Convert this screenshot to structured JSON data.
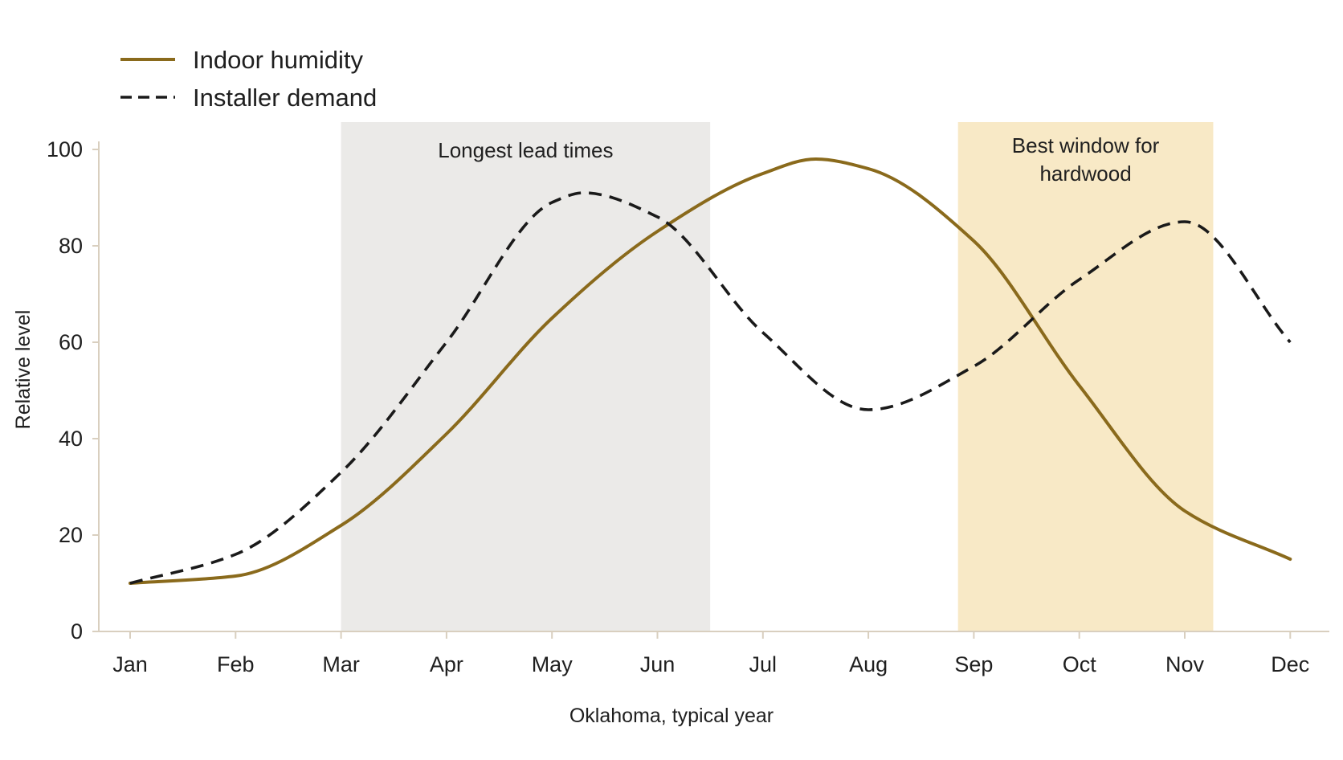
{
  "chart_data": {
    "type": "line",
    "title": "",
    "xlabel": "Oklahoma, typical year",
    "ylabel": "Relative level",
    "categories": [
      "Jan",
      "Feb",
      "Mar",
      "Apr",
      "May",
      "Jun",
      "Jul",
      "Aug",
      "Sep",
      "Oct",
      "Nov",
      "Dec"
    ],
    "ylim": [
      0,
      100
    ],
    "yticks": [
      0,
      20,
      40,
      60,
      80,
      100
    ],
    "grid": false,
    "legend_position": "top-left",
    "series": [
      {
        "name": "Indoor humidity",
        "style": "solid",
        "color": "#8a6a1c",
        "values": [
          10,
          11.5,
          22,
          41,
          65,
          83,
          95,
          96,
          81,
          51,
          25,
          15
        ],
        "peak": {
          "month": 7.5,
          "value": 98
        }
      },
      {
        "name": "Installer demand",
        "style": "dashed",
        "color": "#1a1a1a",
        "values": [
          10,
          16,
          33,
          60,
          89,
          86,
          62,
          46,
          55,
          73,
          85,
          60
        ],
        "peak": {
          "month": 5.3,
          "value": 91
        }
      }
    ],
    "bands": [
      {
        "label": "Longest lead times",
        "from": 3,
        "to": 6.5,
        "color": "#ebeae8"
      },
      {
        "label_lines": [
          "Best window for",
          "hardwood"
        ],
        "from": 8.85,
        "to": 11.27,
        "color": "#f8e9c6"
      }
    ]
  }
}
